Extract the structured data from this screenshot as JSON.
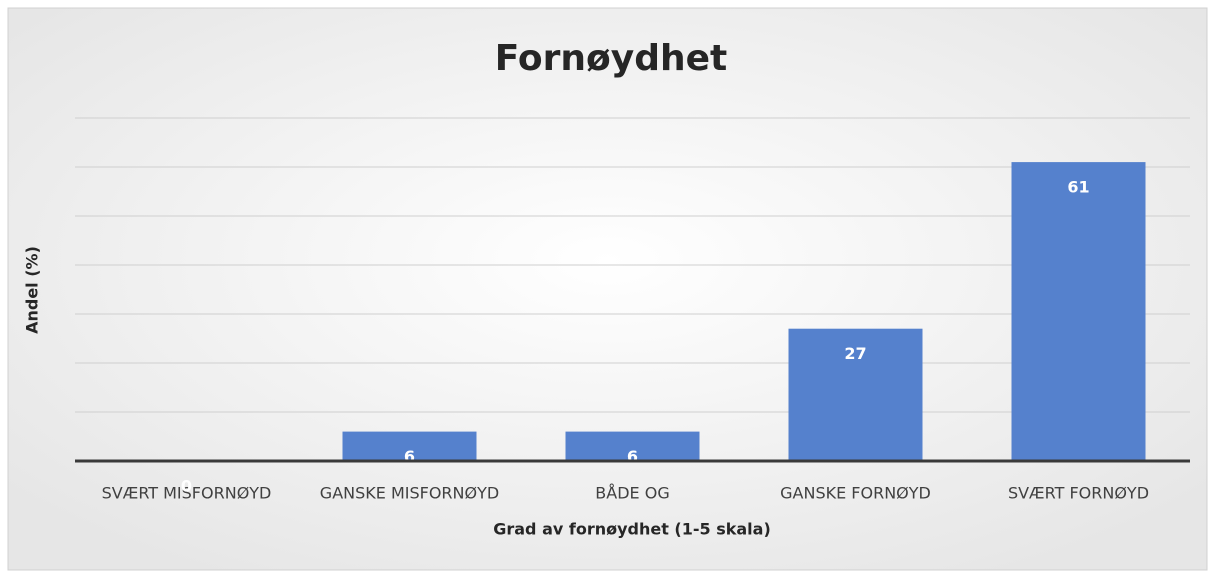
{
  "chart_data": {
    "type": "bar",
    "title": "Fornøydhet",
    "x_label": "Grad av fornøydhet (1-5 skala)",
    "y_label": "Andel (%)",
    "categories": [
      "SVÆRT MISFORNØYD",
      "GANSKE MISFORNØYD",
      "BÅDE OG",
      "GANSKE FORNØYD",
      "SVÆRT FORNØYD"
    ],
    "values": [
      0,
      6,
      6,
      27,
      61
    ],
    "color": "#5581cd",
    "ylim": [
      0,
      70
    ],
    "yticks": [
      0,
      10,
      20,
      30,
      40,
      50,
      60,
      70
    ],
    "grid": true
  }
}
